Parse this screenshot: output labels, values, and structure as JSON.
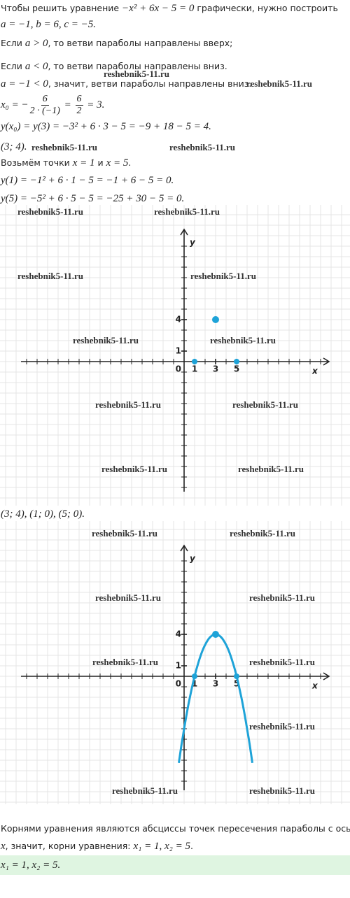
{
  "lines": {
    "l1": [
      "Чтобы решить уравнение ",
      "−x² + 6x − 5 = 0",
      " графически, нужно построить"
    ],
    "l2": "a = −1,  b = 6,  c = −5.",
    "l3": [
      "Если ",
      "a > 0",
      ", то ветви параболы направлены вверх;"
    ],
    "l4": [
      "Если ",
      "a < 0",
      ", то ветви параболы направлены вниз."
    ],
    "l5": [
      "a = −1 < 0",
      ", значит, ветви параболы направлены вниз."
    ],
    "l6": {
      "lhs": "x₀ = −",
      "num1": "6",
      "den1": "2 · (−1)",
      "eq": " = ",
      "num2": "6",
      "den2": "2",
      "rhs": " = 3."
    },
    "l7": "y(x₀) = y(3) = −3² + 6 · 3 − 5 = −9 + 18 − 5 = 4.",
    "l8": "(3;  4).",
    "l9": [
      "Возьмём точки ",
      "x = 1",
      " и ",
      "x = 5",
      "."
    ],
    "l10": "y(1) = −1² + 6 · 1 − 5 = −1 + 6 − 5 = 0.",
    "l11": "y(5) = −5² + 6 · 5 − 5 = −25 + 30 − 5 = 0.",
    "l12": "(3;  4),  (1;  0),  (5;  0).",
    "l13": "Корнями уравнения являются абсциссы точек пересечения параболы с осью",
    "l14": [
      "x",
      ", значит, корни уравнения: ",
      "x₁ = 1, x₂ = 5",
      "."
    ],
    "answer": "x₁ = 1, x₂ = 5."
  },
  "watermark": "reshebnik5-11.ru",
  "graph1": {
    "x_label": "x",
    "y_label": "y",
    "origin_label": "0",
    "xticks": [
      1,
      3,
      5
    ],
    "yticks": [
      1,
      4
    ],
    "points": [
      {
        "x": 3,
        "y": 4
      },
      {
        "x": 1,
        "y": 0
      },
      {
        "x": 5,
        "y": 0
      }
    ]
  },
  "graph2": {
    "x_label": "x",
    "y_label": "y",
    "origin_label": "0",
    "xticks": [
      1,
      3,
      5
    ],
    "yticks": [
      1,
      4
    ],
    "points": [
      {
        "x": 3,
        "y": 4
      },
      {
        "x": 1,
        "y": 0
      },
      {
        "x": 5,
        "y": 0
      }
    ],
    "curve": {
      "a": -1,
      "b": 6,
      "c": -5,
      "x_range": [
        -0.5,
        6.5
      ]
    }
  }
}
